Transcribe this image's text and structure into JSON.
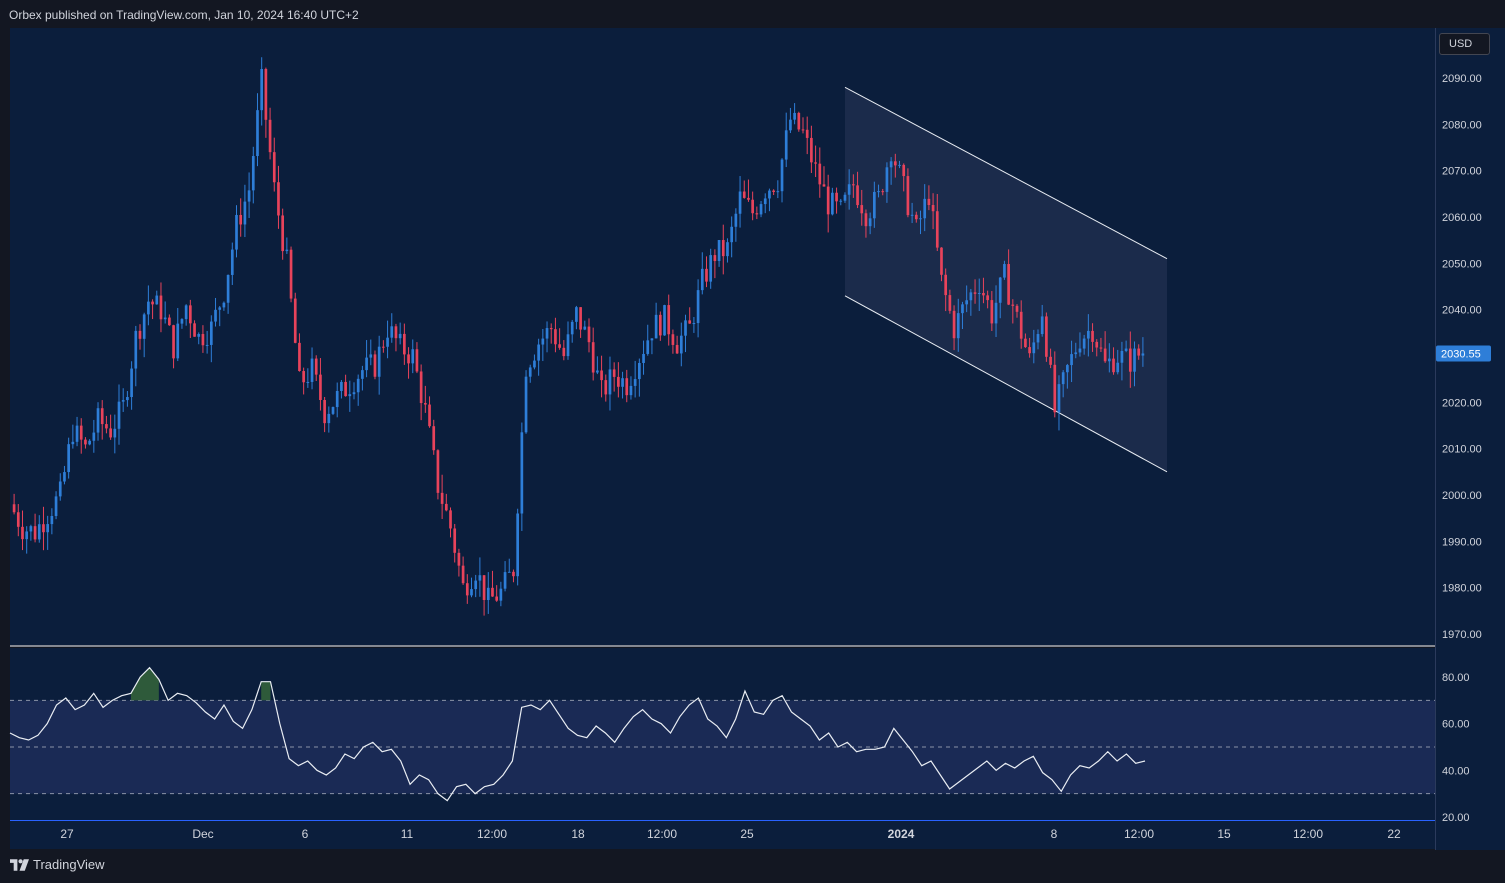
{
  "header": {
    "published_text": "Orbex published on TradingView.com, Jan 10, 2024 16:40 UTC+2"
  },
  "currency_button": "USD",
  "brand": {
    "name": "TradingView"
  },
  "colors": {
    "background": "#0b1e3c",
    "panel_background": "#131722",
    "bullish": "#2e7ed8",
    "bearish": "#e8435b",
    "channel_fill": "#1e2e4e",
    "rsi_band_fill": "#1a2a55",
    "rsi_line": "#e9edf3",
    "rsi_overbought_fill": "#2e5a3a",
    "last_price_badge": "#2e7ed8"
  },
  "price_axis": {
    "ticks": [
      "2090.00",
      "2080.00",
      "2070.00",
      "2060.00",
      "2050.00",
      "2040.00",
      "2030.00",
      "2020.00",
      "2010.00",
      "2000.00",
      "1990.00",
      "1980.00",
      "1970.00"
    ],
    "last_price": "2030.55"
  },
  "rsi_axis": {
    "ticks": [
      "80.00",
      "60.00",
      "40.00",
      "20.00"
    ]
  },
  "time_axis": {
    "labels": [
      {
        "text": "27",
        "bold": false
      },
      {
        "text": "Dec",
        "bold": false
      },
      {
        "text": "6",
        "bold": false
      },
      {
        "text": "11",
        "bold": false
      },
      {
        "text": "12:00",
        "bold": false
      },
      {
        "text": "18",
        "bold": false
      },
      {
        "text": "12:00",
        "bold": false
      },
      {
        "text": "25",
        "bold": false
      },
      {
        "text": "2024",
        "bold": true
      },
      {
        "text": "8",
        "bold": false
      },
      {
        "text": "12:00",
        "bold": false
      },
      {
        "text": "15",
        "bold": false
      },
      {
        "text": "12:00",
        "bold": false
      },
      {
        "text": "22",
        "bold": false
      }
    ]
  },
  "chart_data": [
    {
      "type": "candlestick",
      "title": "",
      "ylim": [
        1966,
        2095
      ],
      "grid": false,
      "annotations": [
        {
          "type": "descending_channel",
          "upper_line": [
            2088,
            2051
          ],
          "lower_line": [
            2043,
            2005
          ]
        }
      ],
      "close_points": [
        {
          "c": 1993
        },
        {
          "c": 1992
        },
        {
          "c": 1996
        },
        {
          "c": 2000
        },
        {
          "c": 2014
        },
        {
          "c": 2010
        },
        {
          "c": 2016
        },
        {
          "c": 2014
        },
        {
          "c": 2019
        },
        {
          "c": 2034
        },
        {
          "c": 2042
        },
        {
          "c": 2040
        },
        {
          "c": 2032
        },
        {
          "c": 2041
        },
        {
          "c": 2034
        },
        {
          "c": 2036
        },
        {
          "c": 2044
        },
        {
          "c": 2058
        },
        {
          "c": 2066
        },
        {
          "c": 2089
        },
        {
          "c": 2066
        },
        {
          "c": 2050
        },
        {
          "c": 2024
        },
        {
          "c": 2027
        },
        {
          "c": 2018
        },
        {
          "c": 2021
        },
        {
          "c": 2024
        },
        {
          "c": 2027
        },
        {
          "c": 2028
        },
        {
          "c": 2036
        },
        {
          "c": 2032
        },
        {
          "c": 2030
        },
        {
          "c": 2018
        },
        {
          "c": 2002
        },
        {
          "c": 1993
        },
        {
          "c": 1980
        },
        {
          "c": 1984
        },
        {
          "c": 1977
        },
        {
          "c": 1979
        },
        {
          "c": 1984
        },
        {
          "c": 2028
        },
        {
          "c": 2033
        },
        {
          "c": 2036
        },
        {
          "c": 2030
        },
        {
          "c": 2039
        },
        {
          "c": 2033
        },
        {
          "c": 2022
        },
        {
          "c": 2026
        },
        {
          "c": 2024
        },
        {
          "c": 2030
        },
        {
          "c": 2036
        },
        {
          "c": 2038
        },
        {
          "c": 2033
        },
        {
          "c": 2036
        },
        {
          "c": 2046
        },
        {
          "c": 2052
        },
        {
          "c": 2053
        },
        {
          "c": 2064
        },
        {
          "c": 2061
        },
        {
          "c": 2066
        },
        {
          "c": 2068
        },
        {
          "c": 2081
        },
        {
          "c": 2078
        },
        {
          "c": 2070
        },
        {
          "c": 2063
        },
        {
          "c": 2061
        },
        {
          "c": 2067
        },
        {
          "c": 2061
        },
        {
          "c": 2064
        },
        {
          "c": 2075
        },
        {
          "c": 2066
        },
        {
          "c": 2057
        },
        {
          "c": 2065
        },
        {
          "c": 2046
        },
        {
          "c": 2036
        },
        {
          "c": 2042
        },
        {
          "c": 2046
        },
        {
          "c": 2039
        },
        {
          "c": 2047
        },
        {
          "c": 2038
        },
        {
          "c": 2029
        },
        {
          "c": 2040
        },
        {
          "c": 2018
        },
        {
          "c": 2027
        },
        {
          "c": 2034
        },
        {
          "c": 2036
        },
        {
          "c": 2028
        },
        {
          "c": 2030
        },
        {
          "c": 2029
        },
        {
          "c": 2031
        }
      ],
      "last_price": 2030.55
    },
    {
      "type": "line",
      "title": "",
      "ylim": [
        20,
        90
      ],
      "bands": {
        "upper": 70,
        "middle": 50,
        "lower": 30
      },
      "values": [
        56,
        54,
        53,
        55,
        60,
        68,
        71,
        66,
        68,
        73,
        67,
        70,
        72,
        73,
        80,
        84,
        79,
        70,
        73,
        72,
        69,
        65,
        62,
        68,
        61,
        58,
        66,
        78,
        78,
        60,
        45,
        42,
        44,
        40,
        38,
        41,
        47,
        45,
        50,
        52,
        48,
        49,
        44,
        34,
        38,
        36,
        30,
        27,
        33,
        34,
        30,
        33,
        34,
        38,
        44,
        67,
        68,
        66,
        70,
        64,
        58,
        55,
        54,
        59,
        56,
        52,
        58,
        63,
        66,
        62,
        60,
        56,
        63,
        68,
        71,
        62,
        59,
        54,
        62,
        74,
        65,
        64,
        70,
        72,
        65,
        62,
        59,
        53,
        56,
        50,
        52,
        48,
        49,
        49,
        50,
        58,
        53,
        48,
        42,
        44,
        38,
        32,
        35,
        38,
        41,
        44,
        40,
        43,
        41,
        44,
        46,
        39,
        36,
        31,
        38,
        42,
        41,
        44,
        48,
        44,
        47,
        43,
        44
      ]
    }
  ]
}
